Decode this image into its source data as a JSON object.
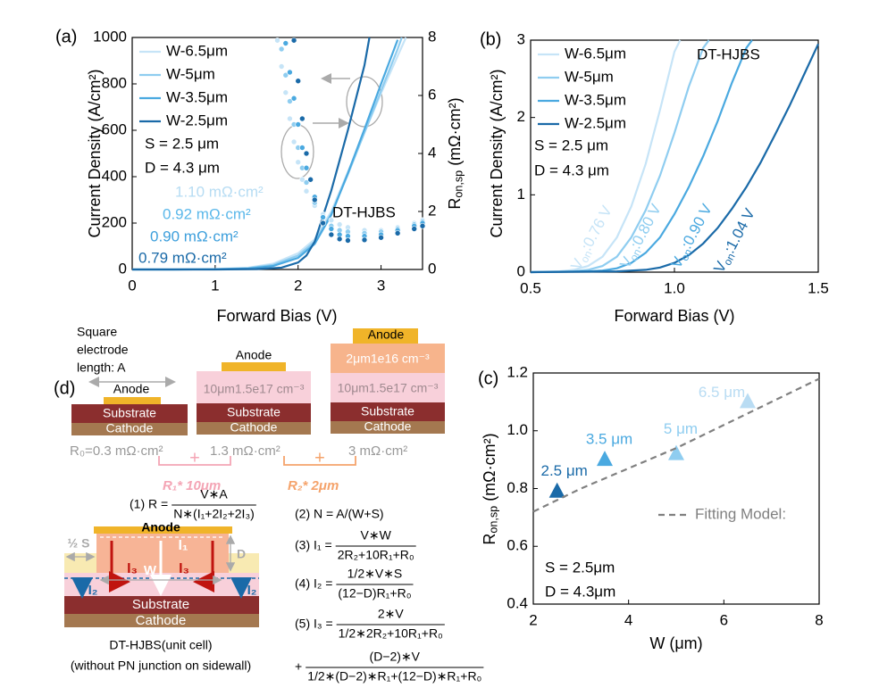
{
  "chart_data": [
    {
      "type": "line",
      "panel": "(a)",
      "xlabel": "Forward Bias (V)",
      "ylabel": "Current Density (A/cm²)",
      "y2label": [
        "R",
        "on,sp",
        " (mΩ·cm²)"
      ],
      "xlim": [
        0,
        3.5
      ],
      "xticks": [
        0,
        1,
        2,
        3
      ],
      "ylim": [
        0,
        1000
      ],
      "yticks": [
        0,
        200,
        400,
        600,
        800,
        1000
      ],
      "y2lim": [
        0,
        8
      ],
      "y2ticks": [
        0,
        2,
        4,
        6,
        8
      ],
      "legend": "upper left",
      "series": [
        {
          "name": "W-6.5μm",
          "color": "#c6e4f7",
          "x": [
            0,
            0.5,
            1,
            1.4,
            1.7,
            2,
            2.2,
            2.4,
            2.6,
            2.8,
            3,
            3.2,
            3.3
          ],
          "values": [
            0,
            0,
            2,
            8,
            25,
            70,
            130,
            250,
            420,
            590,
            760,
            920,
            1000
          ]
        },
        {
          "name": "W-5μm",
          "color": "#8fcdf0",
          "x": [
            0,
            0.5,
            1,
            1.4,
            1.7,
            2,
            2.2,
            2.4,
            2.6,
            2.8,
            3,
            3.2,
            3.25
          ],
          "values": [
            0,
            0,
            1,
            6,
            20,
            60,
            120,
            240,
            410,
            590,
            770,
            950,
            1000
          ]
        },
        {
          "name": "W-3.5μm",
          "color": "#4aa9e0",
          "x": [
            0,
            0.5,
            1,
            1.4,
            1.7,
            2,
            2.2,
            2.4,
            2.6,
            2.8,
            3,
            3.2
          ],
          "values": [
            0,
            0,
            1,
            4,
            15,
            50,
            110,
            235,
            415,
            605,
            800,
            990
          ]
        },
        {
          "name": "W-2.5μm",
          "color": "#1a6aa8",
          "x": [
            0,
            0.5,
            1,
            1.5,
            1.8,
            2,
            2.1,
            2.2,
            2.4,
            2.6,
            2.8,
            2.86
          ],
          "values": [
            0,
            0,
            0,
            2,
            8,
            30,
            60,
            120,
            340,
            600,
            880,
            1000
          ]
        },
        {
          "axis": "y2",
          "marker": "dot",
          "color": "#c6e4f7",
          "x": [
            1.75,
            1.8,
            1.85,
            1.9,
            1.95,
            2,
            2.05,
            2.1,
            2.2,
            2.3,
            2.4,
            2.5,
            2.6,
            2.8,
            3,
            3.2,
            3.4,
            3.5
          ],
          "values": [
            7.9,
            7,
            6.1,
            5.2,
            4.4,
            3.7,
            3.1,
            2.7,
            2.2,
            1.9,
            1.7,
            1.55,
            1.45,
            1.35,
            1.35,
            1.45,
            1.6,
            1.7
          ]
        },
        {
          "axis": "y2",
          "marker": "dot",
          "color": "#8fcdf0",
          "x": [
            1.8,
            1.85,
            1.9,
            1.95,
            2,
            2.05,
            2.1,
            2.2,
            2.3,
            2.4,
            2.5,
            2.6,
            2.8,
            3,
            3.2,
            3.4,
            3.5
          ],
          "values": [
            7.6,
            6.7,
            5.8,
            5,
            4.2,
            3.5,
            3,
            2.3,
            1.8,
            1.5,
            1.35,
            1.3,
            1.25,
            1.3,
            1.4,
            1.55,
            1.65
          ]
        },
        {
          "axis": "y2",
          "marker": "dot",
          "color": "#4aa9e0",
          "x": [
            1.85,
            1.9,
            1.95,
            2,
            2.05,
            2.1,
            2.2,
            2.3,
            2.4,
            2.5,
            2.6,
            2.8,
            3,
            3.2,
            3.4,
            3.5
          ],
          "values": [
            7.8,
            6.8,
            5.9,
            5,
            4.2,
            3.5,
            2.5,
            1.8,
            1.4,
            1.2,
            1.15,
            1.15,
            1.2,
            1.35,
            1.5,
            1.6
          ]
        },
        {
          "axis": "y2",
          "marker": "dot",
          "color": "#1a6aa8",
          "x": [
            1.95,
            2,
            2.05,
            2.1,
            2.15,
            2.2,
            2.3,
            2.4,
            2.5,
            2.6,
            2.8,
            3,
            3.2,
            3.4,
            3.5
          ],
          "values": [
            7.9,
            6.5,
            5.2,
            4,
            3.1,
            2.4,
            1.6,
            1.2,
            1.05,
            1,
            1.02,
            1.1,
            1.25,
            1.4,
            1.5
          ]
        }
      ],
      "annotations": [
        {
          "text": "S = 2.5 μm",
          "color": "#000000"
        },
        {
          "text": "D = 4.3 μm",
          "color": "#000000"
        },
        {
          "text": "1.10 mΩ·cm²",
          "color": "#b6dcf3"
        },
        {
          "text": "0.92 mΩ·cm²",
          "color": "#5bb8ea"
        },
        {
          "text": "0.90 mΩ·cm²",
          "color": "#3d9fdc"
        },
        {
          "text": "0.79 mΩ·cm²",
          "color": "#1a6aa8"
        },
        {
          "text": "DT-HJBS",
          "color": "#000000"
        }
      ]
    },
    {
      "type": "line",
      "panel": "(b)",
      "xlabel": "Forward Bias (V)",
      "ylabel": "Current Density (A/cm²)",
      "xlim": [
        0.5,
        1.5
      ],
      "xticks": [
        0.5,
        {
          "value": 1,
          "label": "1.0"
        },
        1.5
      ],
      "ylim": [
        0,
        3
      ],
      "yticks": [
        0,
        1,
        2,
        3
      ],
      "legend": "upper left",
      "series": [
        {
          "name": "W-6.5μm",
          "color": "#c6e4f7",
          "x": [
            0.5,
            0.6,
            0.65,
            0.7,
            0.75,
            0.8,
            0.85,
            0.9,
            0.95,
            1.0,
            1.02
          ],
          "values": [
            0,
            0.01,
            0.03,
            0.08,
            0.2,
            0.45,
            0.85,
            1.4,
            2.1,
            2.85,
            3
          ]
        },
        {
          "name": "W-5μm",
          "color": "#8fcdf0",
          "x": [
            0.5,
            0.65,
            0.7,
            0.75,
            0.8,
            0.85,
            0.9,
            0.95,
            1.0,
            1.05,
            1.1,
            1.12
          ],
          "values": [
            0,
            0.01,
            0.03,
            0.08,
            0.2,
            0.45,
            0.8,
            1.25,
            1.8,
            2.4,
            2.9,
            3
          ]
        },
        {
          "name": "W-3.5μm",
          "color": "#4aa9e0",
          "x": [
            0.5,
            0.7,
            0.75,
            0.8,
            0.85,
            0.9,
            0.95,
            1.0,
            1.05,
            1.1,
            1.15,
            1.2,
            1.25,
            1.27
          ],
          "values": [
            0,
            0.01,
            0.02,
            0.05,
            0.12,
            0.25,
            0.45,
            0.75,
            1.1,
            1.5,
            1.95,
            2.45,
            2.9,
            3
          ]
        },
        {
          "name": "W-2.5μm",
          "color": "#1a6aa8",
          "x": [
            0.5,
            0.8,
            0.9,
            0.95,
            1.0,
            1.05,
            1.1,
            1.15,
            1.2,
            1.25,
            1.3,
            1.35,
            1.4,
            1.45,
            1.5
          ],
          "values": [
            0,
            0.01,
            0.03,
            0.06,
            0.12,
            0.22,
            0.37,
            0.57,
            0.82,
            1.1,
            1.42,
            1.78,
            2.15,
            2.55,
            2.95
          ]
        }
      ],
      "von_labels": [
        [
          "V",
          "on",
          ":0.76 V"
        ],
        [
          "V",
          "on",
          ":0.80 V"
        ],
        [
          "V",
          "on",
          ":0.90 V"
        ],
        [
          "V",
          "on",
          ":1.04 V"
        ]
      ],
      "annotations": [
        {
          "text": "DT-HJBS",
          "color": "#000000"
        },
        {
          "text": "S = 2.5 μm",
          "color": "#000000"
        },
        {
          "text": "D = 4.3 μm",
          "color": "#000000"
        }
      ]
    },
    {
      "type": "scatter",
      "panel": "(c)",
      "xlabel": "W (μm)",
      "ylabel": [
        "R",
        "on,sp",
        " (mΩ·cm²)"
      ],
      "xlim": [
        2,
        8
      ],
      "xticks": [
        2,
        4,
        6,
        8
      ],
      "ylim": [
        0.4,
        1.2
      ],
      "yticks": [
        0.4,
        0.6,
        0.8,
        {
          "value": 1,
          "label": "1.0"
        },
        1.2
      ],
      "legend": "lower right",
      "series": [
        {
          "marker": "triangle",
          "x": [
            2.5,
            3.5,
            5,
            6.5
          ],
          "values": [
            0.79,
            0.9,
            0.92,
            1.1
          ],
          "colors": [
            "#1a6aa8",
            "#4aa9e0",
            "#8fcdf0",
            "#b9dcf3"
          ],
          "point_labels": [
            "2.5 μm",
            "3.5 μm",
            "5 μm",
            "6.5 μm"
          ]
        },
        {
          "name": "Fitting Model:",
          "color": "#808080",
          "dash": true,
          "x": [
            2,
            3,
            4,
            5,
            6,
            7,
            8
          ],
          "values": [
            0.72,
            0.8,
            0.87,
            0.94,
            1.02,
            1.1,
            1.18
          ]
        }
      ],
      "annotations": [
        {
          "text": "S  = 2.5μm",
          "color": "#000000"
        },
        {
          "text": "D = 4.3μm",
          "color": "#000000"
        }
      ]
    }
  ],
  "diagram": {
    "panel": "(d)",
    "electrode_note": [
      "Square",
      "electrode",
      "length: A"
    ],
    "structures": [
      {
        "layers": [
          "Anode",
          "Substrate",
          "Cathode"
        ],
        "resistance": "R₀=0.3 mΩ·cm²"
      },
      {
        "layers": [
          "Anode",
          "10μm1.5e17 cm⁻³",
          "Substrate",
          "Cathode"
        ],
        "resistance": "1.3 mΩ·cm²"
      },
      {
        "layers": [
          "Anode",
          "2μm1e16 cm⁻³",
          "10μm1.5e17 cm⁻³",
          "Substrate",
          "Cathode"
        ],
        "resistance": "3 mΩ·cm²"
      }
    ],
    "steps": [
      {
        "sign": "+",
        "label": "R₁* 10μm"
      },
      {
        "sign": "+",
        "label": "R₂* 2μm"
      }
    ],
    "unit_cell": {
      "labels": [
        "Anode",
        "I₁",
        "I₃",
        "W",
        "I₃",
        "I₂",
        "I₂",
        "½ S",
        "D",
        "Substrate",
        "Cathode"
      ],
      "caption": [
        "DT-HJBS(unit cell)",
        "(without PN junction on sidewall)"
      ]
    },
    "equations": [
      {
        "label": "(1) R =",
        "num": "V∗A",
        "den": "N∗(I₁+2I₂+2I₃)"
      },
      {
        "text": "(2) N = A/(W+S)"
      },
      {
        "label": "(3) I₁ =",
        "num": "V∗W",
        "den": "2R₂+10R₁+R₀"
      },
      {
        "label": "(4) I₂ =",
        "num": "1/2∗V∗S",
        "den": "(12−D)R₁+R₀"
      },
      {
        "label": "(5) I₃ =",
        "num": "2∗V",
        "den": "1/2∗2R₂+10R₁+R₀"
      },
      {
        "label": "+",
        "num": "(D−2)∗V",
        "den": "1/2∗(D−2)∗R₁+(12−D)∗R₁+R₀"
      }
    ]
  }
}
